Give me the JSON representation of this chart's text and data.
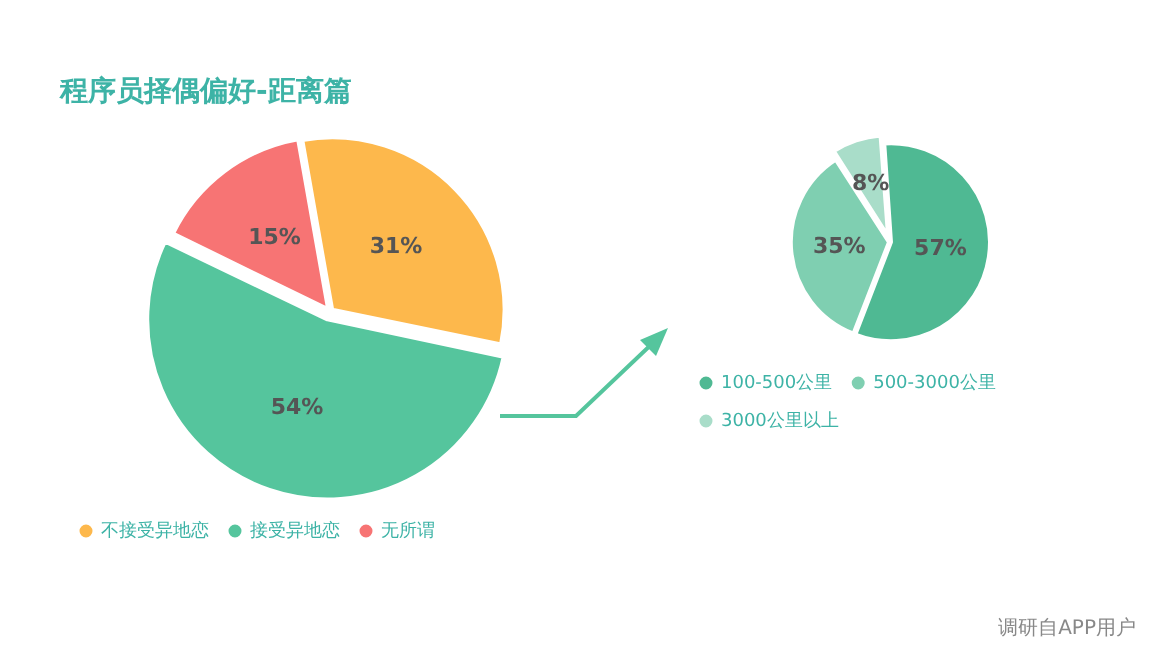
{
  "chart_data": [
    {
      "type": "pie",
      "title": "程序员择偶偏好-距离篇",
      "categories": [
        "不接受异地恋",
        "接受异地恋",
        "无所谓"
      ],
      "values": [
        31,
        54,
        15
      ],
      "value_labels": [
        "31%",
        "54%",
        "15%"
      ],
      "colors": [
        "#fdb84c",
        "#55c59d",
        "#f77474"
      ],
      "legend": "bottom"
    },
    {
      "type": "pie",
      "categories": [
        "100-500公里",
        "500-3000公里",
        "3000公里以上"
      ],
      "values": [
        57,
        35,
        8
      ],
      "value_labels": [
        "57%",
        "35%",
        "8%"
      ],
      "colors": [
        "#4fb993",
        "#7fcfb1",
        "#a9ddc9"
      ],
      "legend": "bottom",
      "annotations": [
        "调研自APP用户"
      ]
    }
  ]
}
